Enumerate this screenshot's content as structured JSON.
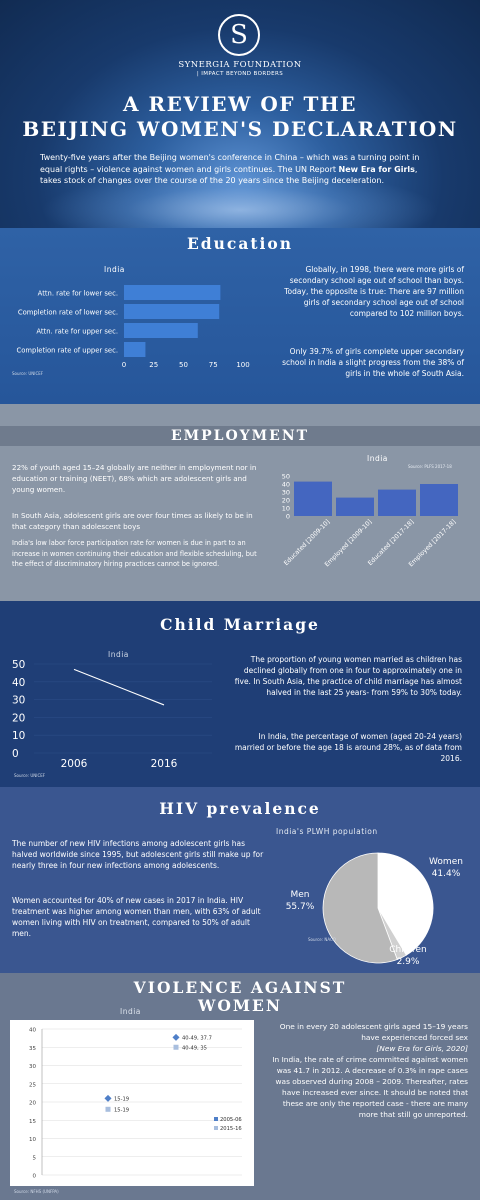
{
  "header": {
    "logo_letter": "S",
    "org_name": "SYNERGIA FOUNDATION",
    "tagline": "| IMPACT BEYOND BORDERS",
    "title_line1": "A REVIEW OF THE",
    "title_line2": "BEIJING WOMEN'S DECLARATION",
    "intro_part1": "Twenty-five years after the Beijing women's conference in China – which was a  turning point in equal rights – violence against women and girls continues.  The UN Report ",
    "intro_bold": "New Era for Girls",
    "intro_part2": ", takes stock of changes over the course of the 20 years since the Beijing deceleration."
  },
  "education": {
    "title": "Education",
    "chart_title": "India",
    "source": "Source: UNICEF",
    "text1": "Globally, in 1998, there were more girls of secondary school age out of school than boys. Today, the opposite is true: There are 97 million girls of secondary school age out of school compared to 102 million boys.",
    "text2": "Only 39.7% of girls complete upper secondary school in India a slight progress from the 38% of girls in the whole of South Asia."
  },
  "employment": {
    "title": "EMPLOYMENT",
    "chart_title": "India",
    "source": "Source: PLFS 2017-18",
    "text1": "22% of youth aged 15–24 globally are neither in employment nor in education or training (NEET), 68% which are adolescent girls and young women.",
    "text2": "In South Asia, adolescent girls are over four times as likely to be in that category than adolescent boys",
    "text3": "India's low labor force participation rate for women is due in part to an increase in women continuing their education and flexible scheduling, but the effect of discriminatory hiring practices cannot be ignored."
  },
  "child_marriage": {
    "title": "Child Marriage",
    "chart_title": "India",
    "source": "Source: UNICEF",
    "text1": "The proportion of young women married as children has declined globally from one in four to approximately one in five. In South Asia, the practice of child marriage has almost halved in the last 25 years- from 59% to 30% today.",
    "text2": "In India, the percentage of women (aged 20-24 years) married or before the age 18 is around 28%, as of data from 2016."
  },
  "hiv": {
    "title": "HIV prevalence",
    "chart_title": "India's PLWH population",
    "source": "Source: NACO",
    "text1": "The number of new HIV infections among adolescent girls has halved worldwide since 1995, but adolescent girls still make up for nearly three in four new infections among adolescents.",
    "text2": "Women accounted for 40% of new cases in 2017 in India. HIV treatment was higher among women than men, with 63% of adult women living with HIV on treatment, compared to 50% of adult men."
  },
  "violence": {
    "title_line1": "VIOLENCE AGAINST",
    "title_line2": "WOMEN",
    "chart_title": "India",
    "source": "Source: NFHS (UNFPA)",
    "text1": "One in every 20 adolescent girls aged 15–19 years have experienced forced sex",
    "text1_ref": "[New Era for Girls, 2020]",
    "text2": "In India, the rate of crime committed against women was 41.7 in 2012. A decrease of 0.3% in rape cases was observed during 2008 – 2009. Thereafter, rates have increased ever since. It should be noted that these are only the reported case - there are many more that still go unreported."
  },
  "colors": {
    "bar_blue": "#3f7fd6",
    "emp_bar": "#4466c0",
    "pie_women": "#ffffff",
    "pie_men": "#b8b8b8",
    "pie_children": "#d0d0d0"
  },
  "chart_data": [
    {
      "id": "education",
      "type": "bar",
      "orientation": "horizontal",
      "title": "India",
      "categories": [
        "Attn. rate for lower sec.",
        "Completion rate of lower sec.",
        "Attn. rate for upper sec.",
        "Completion rate of upper sec."
      ],
      "values": [
        81,
        80,
        62,
        18
      ],
      "xlim": [
        0,
        100
      ],
      "xticks": [
        0,
        25,
        50,
        75,
        100
      ]
    },
    {
      "id": "employment",
      "type": "bar",
      "title": "India",
      "categories": [
        "Educated [2009-10]",
        "Employed [2009-10]",
        "Educated [2017-18]",
        "Employed [2017-18]"
      ],
      "values": [
        43,
        23,
        33,
        40
      ],
      "ylim": [
        0,
        50
      ],
      "yticks": [
        0,
        10,
        20,
        30,
        40,
        50
      ]
    },
    {
      "id": "child_marriage",
      "type": "line",
      "title": "India",
      "categories": [
        "2006",
        "2016"
      ],
      "values": [
        47,
        27
      ],
      "ylim": [
        0,
        50
      ],
      "yticks": [
        0,
        10,
        20,
        30,
        40,
        50
      ]
    },
    {
      "id": "hiv",
      "type": "pie",
      "title": "India's PLWH population",
      "slices": [
        {
          "label": "Women",
          "value": 41.4,
          "display": "41.4%"
        },
        {
          "label": "Men",
          "value": 55.7,
          "display": "55.7%"
        },
        {
          "label": "Children",
          "value": 2.9,
          "display": "2.9%"
        }
      ]
    },
    {
      "id": "violence",
      "type": "scatter",
      "title": "India",
      "ylim": [
        0,
        40
      ],
      "yticks": [
        0,
        5,
        10,
        15,
        20,
        25,
        30,
        35,
        40
      ],
      "series": [
        {
          "name": "2005-06",
          "points": [
            {
              "label": "15-19",
              "y": 21
            },
            {
              "label": "40-49, 37.7",
              "y": 37.7
            }
          ]
        },
        {
          "name": "2015-16",
          "points": [
            {
              "label": "15-19",
              "y": 18
            },
            {
              "label": "40-49, 35",
              "y": 35
            }
          ]
        }
      ]
    }
  ]
}
